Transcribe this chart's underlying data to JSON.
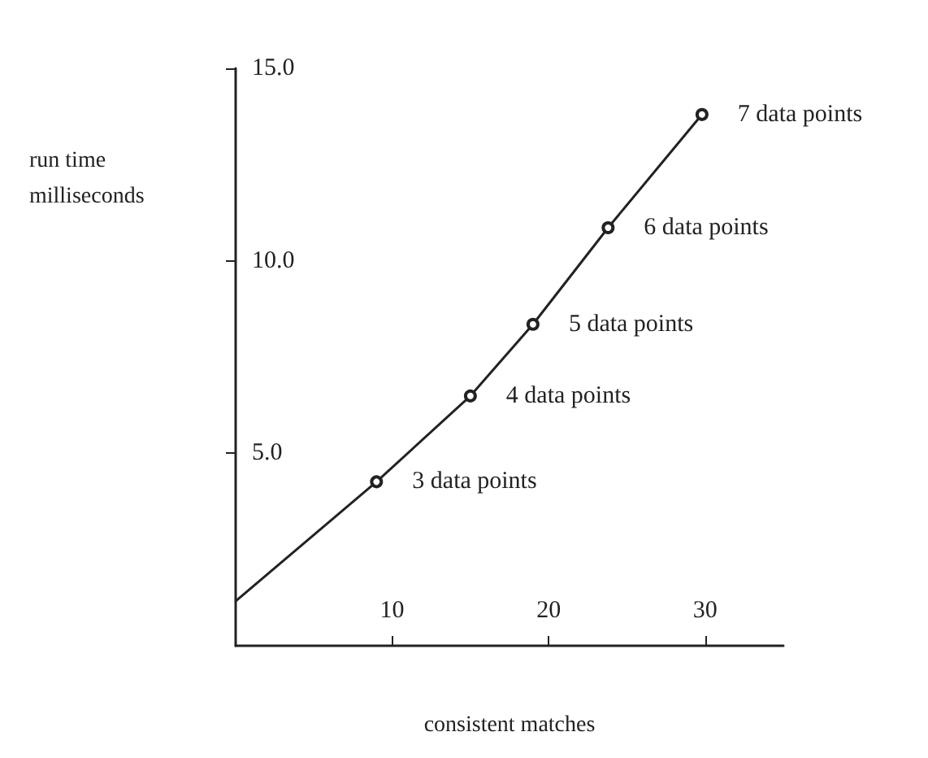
{
  "chart_data": {
    "type": "line",
    "xlabel": "consistent matches",
    "ylabel": "run time\nmilliseconds",
    "x": [
      0,
      9,
      15,
      19,
      23.8,
      29.8
    ],
    "series": [
      {
        "color": "#222222",
        "values": [
          1.16,
          4.26,
          6.49,
          8.35,
          10.86,
          13.8
        ]
      }
    ],
    "xlim": [
      0,
      35
    ],
    "xticks": [
      10,
      20,
      30
    ],
    "ylim": [
      0,
      15
    ],
    "yticks": [
      {
        "value": 5,
        "label": "5.0"
      },
      {
        "value": 10,
        "label": "10.0"
      },
      {
        "value": 15,
        "label": "15.0"
      }
    ],
    "marker": "circle",
    "annotations": [
      {
        "text": "3 data points",
        "x": 9,
        "y": 4.26
      },
      {
        "text": "4 data points",
        "x": 15,
        "y": 6.49
      },
      {
        "text": "5 data points",
        "x": 19,
        "y": 8.35
      },
      {
        "text": "6 data points",
        "x": 23.8,
        "y": 10.86
      },
      {
        "text": "7 data points",
        "x": 29.8,
        "y": 13.8
      }
    ]
  }
}
